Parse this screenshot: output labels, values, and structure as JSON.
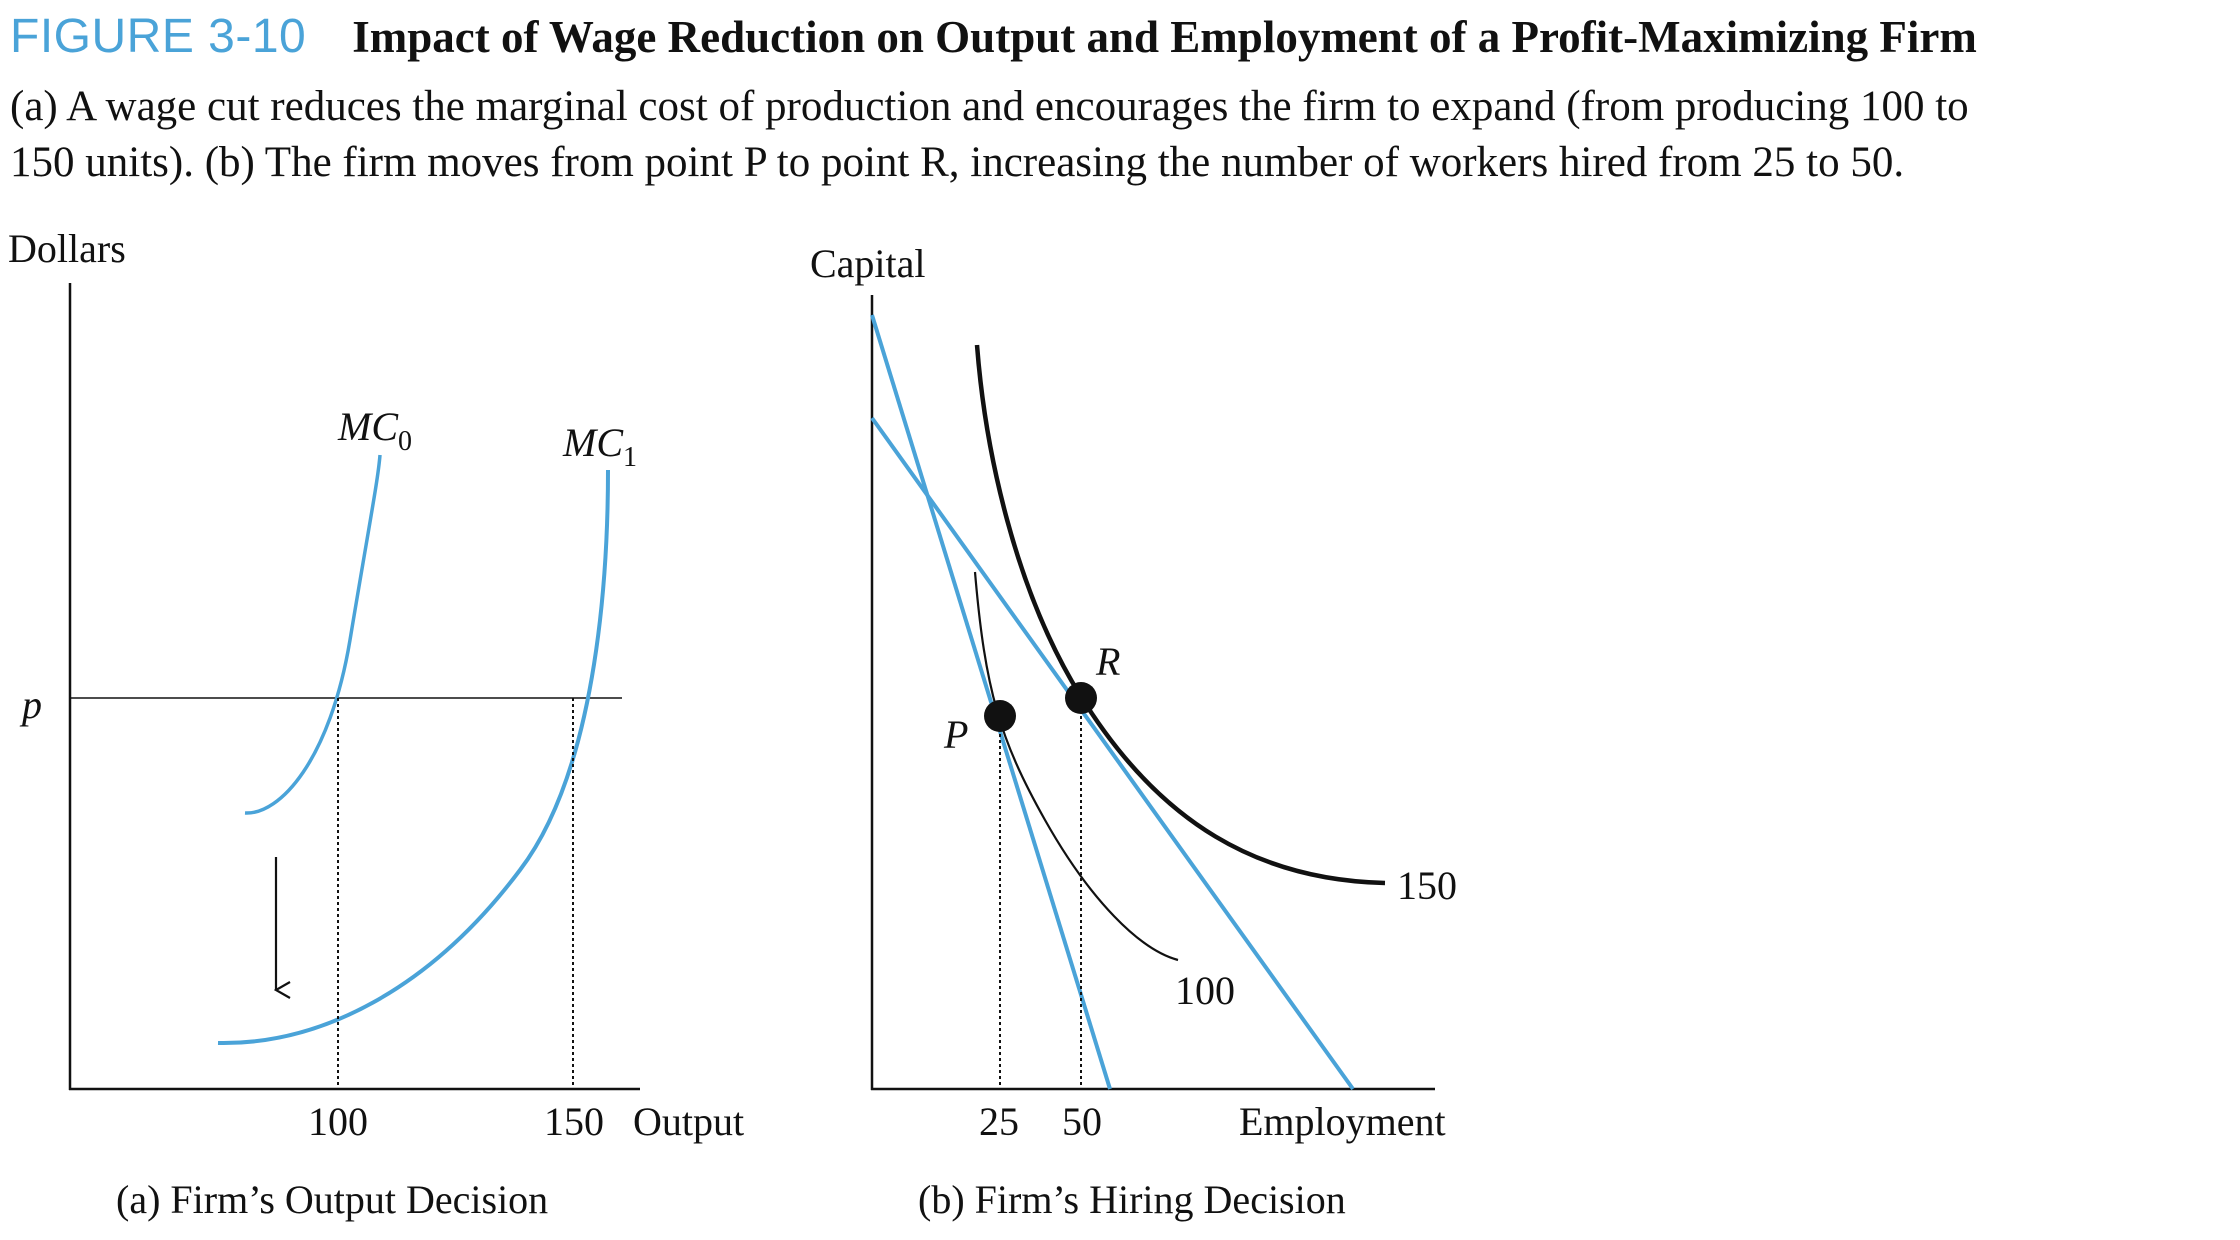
{
  "figure": {
    "label": "FIGURE 3-10",
    "title": "Impact of Wage Reduction on Output and Employment of a Profit-Maximizing Firm",
    "caption_line1": "(a) A wage cut reduces the marginal cost of production and encourages the firm to expand (from producing 100 to",
    "caption_line2": "150 units). (b) The firm moves from point P to point R, increasing the number of workers hired from 25 to 50."
  },
  "panel_a": {
    "y_axis_label": "Dollars",
    "x_axis_label": "Output",
    "price_label": "p",
    "curve_mc0": "MC",
    "curve_mc0_sub": "0",
    "curve_mc1": "MC",
    "curve_mc1_sub": "1",
    "tick_1": "100",
    "tick_2": "150",
    "panel_prefix": "(a)",
    "panel_title": "Firm’s Output Decision"
  },
  "panel_b": {
    "y_axis_label": "Capital",
    "x_axis_label": "Employment",
    "point_p": "P",
    "point_r": "R",
    "isoquant_low": "100",
    "isoquant_high": "150",
    "tick_1": "25",
    "tick_2": "50",
    "panel_prefix": "(b)",
    "panel_title": "Firm’s Hiring Decision"
  },
  "colors": {
    "accent_blue": "#4aa3d8",
    "black": "#111111"
  }
}
